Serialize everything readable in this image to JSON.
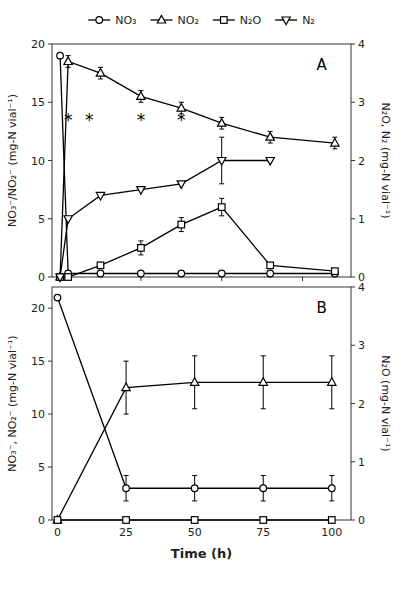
{
  "chart_data": [
    {
      "type": "line",
      "series": [
        {
          "name": "NO₃",
          "color": "#000000",
          "marker": "circle",
          "x": [
            0,
            5,
            25,
            50,
            75,
            100,
            130,
            170
          ],
          "values": [
            19.0,
            0.3,
            0.3,
            0.3,
            0.3,
            0.3,
            0.3,
            0.3
          ],
          "yerr": [
            0,
            0,
            0,
            0,
            0,
            0,
            0,
            0
          ]
        },
        {
          "name": "NO₂",
          "color": "#000000",
          "marker": "triangle-up",
          "x": [
            0,
            5,
            25,
            50,
            75,
            100,
            130,
            170
          ],
          "values": [
            0.0,
            18.5,
            17.5,
            15.5,
            14.5,
            13.2,
            12.0,
            11.5
          ],
          "yerr": [
            0,
            0.5,
            0.5,
            0.5,
            0.5,
            0.5,
            0.5,
            0.5
          ]
        },
        {
          "name": "N₂O",
          "color": "#000000",
          "marker": "square",
          "axis": "y2",
          "x": [
            0,
            5,
            25,
            50,
            75,
            100,
            130,
            170
          ],
          "values": [
            0.0,
            0.0,
            0.2,
            0.5,
            0.9,
            1.2,
            0.2,
            0.1
          ],
          "yerr": [
            0,
            0,
            0,
            0.12,
            0.12,
            0.15,
            0,
            0
          ]
        },
        {
          "name": "N₂",
          "color": "#000000",
          "marker": "triangle-down",
          "axis": "y2",
          "x": [
            0,
            5,
            25,
            50,
            75,
            100,
            130
          ],
          "values": [
            0.0,
            1.0,
            1.4,
            1.5,
            1.6,
            2.0,
            2.0
          ],
          "yerr": [
            0,
            0,
            0,
            0,
            0,
            0.4,
            0
          ]
        }
      ],
      "annotations": [
        {
          "text": "*",
          "x": 5,
          "y": 13.5
        },
        {
          "text": "*",
          "x": 18,
          "y": 13.5
        },
        {
          "text": "*",
          "x": 50,
          "y": 13.5
        },
        {
          "text": "*",
          "x": 75,
          "y": 13.5
        },
        {
          "text": "A"
        }
      ],
      "xlim": [
        -5,
        180
      ],
      "ylim": [
        0,
        20
      ],
      "y2lim": [
        0,
        4
      ],
      "xticks": [
        0,
        50,
        100,
        150
      ],
      "yticks": [
        0,
        5,
        10,
        15,
        20
      ],
      "y2ticks": [
        0,
        1,
        2,
        3,
        4
      ],
      "ylabel": "NO₃⁻/NO₂⁻ (mg-N vial⁻¹)",
      "y2label": "N₂O, N₂ (mg-N vial⁻¹)",
      "tick_labels": "y",
      "grid": false,
      "legend": "top"
    },
    {
      "type": "line",
      "series": [
        {
          "color": "#000000",
          "marker": "circle",
          "x": [
            0,
            25,
            50,
            75,
            100
          ],
          "values": [
            21.0,
            3.0,
            3.0,
            3.0,
            3.0
          ],
          "yerr": [
            0,
            1.2,
            1.2,
            1.2,
            1.2
          ]
        },
        {
          "color": "#000000",
          "marker": "triangle-up",
          "x": [
            0,
            25,
            50,
            75,
            100
          ],
          "values": [
            0.0,
            12.5,
            13.0,
            13.0,
            13.0
          ],
          "yerr": [
            0,
            2.5,
            2.5,
            2.5,
            2.5
          ]
        },
        {
          "color": "#000000",
          "marker": "square",
          "axis": "y2",
          "x": [
            0,
            25,
            50,
            75,
            100
          ],
          "values": [
            0.0,
            0.0,
            0.0,
            0.0,
            0.0
          ],
          "yerr": [
            0,
            0,
            0,
            0,
            0
          ]
        }
      ],
      "annotations": [
        {
          "text": "B"
        }
      ],
      "xlim": [
        -2,
        107
      ],
      "ylim": [
        0,
        22
      ],
      "y2lim": [
        0,
        4
      ],
      "xticks": [
        0,
        25,
        50,
        75,
        100
      ],
      "yticks": [
        0,
        5,
        10,
        15,
        20
      ],
      "y2ticks": [
        0,
        1,
        2,
        3,
        4
      ],
      "xlabel": "Time (h)",
      "ylabel": "NO₃⁻, NO₂⁻ (mg-N vial⁻¹)",
      "y2label": "N₂O (mg-N vial⁻¹)",
      "grid": false
    }
  ]
}
